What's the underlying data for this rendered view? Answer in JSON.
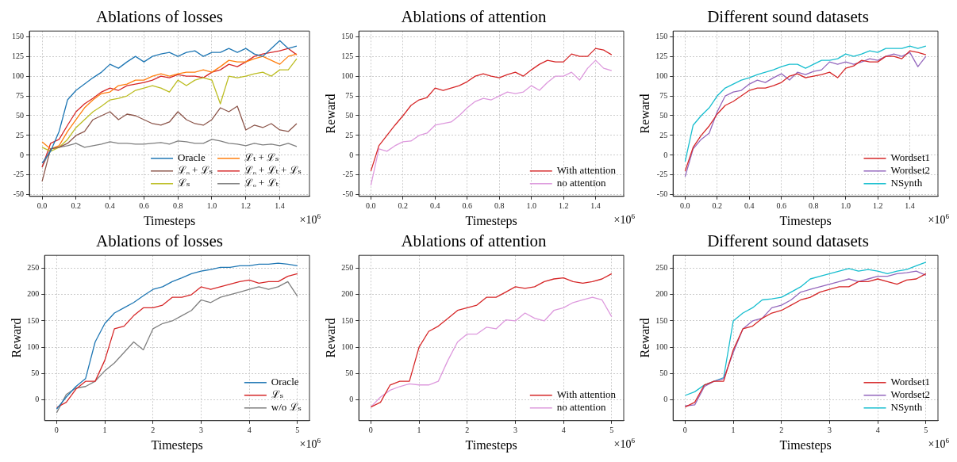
{
  "chart_data": [
    {
      "type": "line",
      "title": "Ablations of losses",
      "xlabel": "Timesteps",
      "annotations": [
        "×10$^{6}$"
      ],
      "grid": true,
      "legend": "bottom right",
      "x": [
        0,
        0.05,
        0.1,
        0.15,
        0.2,
        0.25,
        0.3,
        0.35,
        0.4,
        0.45,
        0.5,
        0.55,
        0.6,
        0.65,
        0.7,
        0.75,
        0.8,
        0.85,
        0.9,
        0.95,
        1.0,
        1.05,
        1.1,
        1.15,
        1.2,
        1.25,
        1.3,
        1.35,
        1.4,
        1.45,
        1.5
      ],
      "xlim": [
        -0.075,
        1.575
      ],
      "xticks": [
        {
          "value": 0,
          "label": "0.0"
        },
        {
          "value": 0.2,
          "label": "0.2"
        },
        {
          "value": 0.4,
          "label": "0.4"
        },
        {
          "value": 0.6,
          "label": "0.6"
        },
        {
          "value": 0.8,
          "label": "0.8"
        },
        {
          "value": 1,
          "label": "1.0"
        },
        {
          "value": 1.2,
          "label": "1.2"
        },
        {
          "value": 1.4,
          "label": "1.4"
        }
      ],
      "ylim": [
        -52,
        157
      ],
      "yticks": [
        -50,
        -25,
        0,
        25,
        50,
        75,
        100,
        125,
        150
      ],
      "series": [
        {
          "name": "Oracle",
          "color": "#1f77b4",
          "values": [
            -10,
            5,
            30,
            70,
            82,
            90,
            98,
            105,
            115,
            110,
            118,
            125,
            118,
            125,
            128,
            130,
            125,
            130,
            132,
            125,
            130,
            130,
            135,
            130,
            135,
            128,
            125,
            135,
            145,
            135,
            138
          ]
        },
        {
          "name": "ℒₒ + ℒₛ",
          "color": "#8c564b",
          "values": [
            -33,
            8,
            10,
            15,
            25,
            30,
            45,
            50,
            55,
            45,
            52,
            50,
            45,
            40,
            38,
            42,
            55,
            45,
            40,
            38,
            45,
            60,
            55,
            62,
            32,
            38,
            35,
            40,
            32,
            30,
            40
          ]
        },
        {
          "name": "ℒₛ",
          "color": "#bcbd22",
          "values": [
            10,
            5,
            10,
            20,
            35,
            45,
            55,
            62,
            70,
            72,
            75,
            82,
            85,
            88,
            85,
            80,
            95,
            88,
            95,
            98,
            95,
            65,
            100,
            98,
            100,
            103,
            105,
            100,
            108,
            108,
            122
          ]
        },
        {
          "name": "ℒₜ + ℒₛ",
          "color": "#ff7f0e",
          "values": [
            17,
            8,
            12,
            30,
            45,
            60,
            70,
            78,
            80,
            88,
            90,
            95,
            95,
            100,
            103,
            100,
            103,
            105,
            105,
            108,
            105,
            112,
            120,
            118,
            118,
            122,
            125,
            120,
            115,
            125,
            128
          ]
        },
        {
          "name": "ℒₒ + ℒₜ + ℒₛ",
          "color": "#d62728",
          "values": [
            -15,
            15,
            20,
            38,
            55,
            65,
            72,
            80,
            85,
            82,
            88,
            90,
            92,
            95,
            100,
            98,
            102,
            100,
            100,
            98,
            105,
            108,
            115,
            112,
            118,
            125,
            128,
            130,
            132,
            135,
            127
          ]
        },
        {
          "name": "ℒₒ + ℒₜ",
          "color": "#7f7f7f",
          "values": [
            -15,
            8,
            10,
            12,
            15,
            10,
            12,
            14,
            17,
            15,
            15,
            14,
            14,
            15,
            16,
            14,
            18,
            17,
            15,
            15,
            20,
            18,
            15,
            14,
            12,
            15,
            13,
            14,
            12,
            15,
            11
          ]
        }
      ]
    },
    {
      "type": "line",
      "title": "Ablations of attention",
      "xlabel": "Timesteps",
      "ylabel": "Reward",
      "annotations": [
        "×10$^{6}$"
      ],
      "grid": true,
      "legend": "bottom right",
      "x": [
        0,
        0.05,
        0.1,
        0.15,
        0.2,
        0.25,
        0.3,
        0.35,
        0.4,
        0.45,
        0.5,
        0.55,
        0.6,
        0.65,
        0.7,
        0.75,
        0.8,
        0.85,
        0.9,
        0.95,
        1.0,
        1.05,
        1.1,
        1.15,
        1.2,
        1.25,
        1.3,
        1.35,
        1.4,
        1.45,
        1.5
      ],
      "xlim": [
        -0.075,
        1.575
      ],
      "xticks": [
        {
          "value": 0,
          "label": "0.0"
        },
        {
          "value": 0.2,
          "label": "0.2"
        },
        {
          "value": 0.4,
          "label": "0.4"
        },
        {
          "value": 0.6,
          "label": "0.6"
        },
        {
          "value": 0.8,
          "label": "0.8"
        },
        {
          "value": 1,
          "label": "1.0"
        },
        {
          "value": 1.2,
          "label": "1.2"
        },
        {
          "value": 1.4,
          "label": "1.4"
        }
      ],
      "ylim": [
        -52,
        157
      ],
      "yticks": [
        -50,
        -25,
        0,
        25,
        50,
        75,
        100,
        125,
        150
      ],
      "series": [
        {
          "name": "With attention",
          "color": "#d62728",
          "values": [
            -20,
            12,
            25,
            38,
            50,
            63,
            70,
            73,
            85,
            82,
            85,
            88,
            93,
            100,
            103,
            100,
            98,
            102,
            105,
            100,
            108,
            115,
            120,
            118,
            118,
            128,
            125,
            125,
            135,
            133,
            127
          ]
        },
        {
          "name": "no attention",
          "color": "#dd99dd",
          "values": [
            -38,
            8,
            5,
            12,
            17,
            18,
            25,
            28,
            38,
            40,
            42,
            50,
            60,
            68,
            72,
            70,
            75,
            80,
            78,
            80,
            88,
            82,
            92,
            100,
            100,
            105,
            95,
            110,
            120,
            110,
            107
          ]
        }
      ]
    },
    {
      "type": "line",
      "title": "Different sound datasets",
      "xlabel": "Timesteps",
      "ylabel": "Reward",
      "annotations": [
        "×10$^{6}$"
      ],
      "grid": true,
      "legend": "bottom right",
      "x": [
        0,
        0.05,
        0.1,
        0.15,
        0.2,
        0.25,
        0.3,
        0.35,
        0.4,
        0.45,
        0.5,
        0.55,
        0.6,
        0.65,
        0.7,
        0.75,
        0.8,
        0.85,
        0.9,
        0.95,
        1.0,
        1.05,
        1.1,
        1.15,
        1.2,
        1.25,
        1.3,
        1.35,
        1.4,
        1.45,
        1.5
      ],
      "xlim": [
        -0.075,
        1.575
      ],
      "xticks": [
        {
          "value": 0,
          "label": "0.0"
        },
        {
          "value": 0.2,
          "label": "0.2"
        },
        {
          "value": 0.4,
          "label": "0.4"
        },
        {
          "value": 0.6,
          "label": "0.6"
        },
        {
          "value": 0.8,
          "label": "0.8"
        },
        {
          "value": 1,
          "label": "1.0"
        },
        {
          "value": 1.2,
          "label": "1.2"
        },
        {
          "value": 1.4,
          "label": "1.4"
        }
      ],
      "ylim": [
        -52,
        157
      ],
      "yticks": [
        -50,
        -25,
        0,
        25,
        50,
        75,
        100,
        125,
        150
      ],
      "series": [
        {
          "name": "Wordset1",
          "color": "#d62728",
          "values": [
            -20,
            10,
            25,
            37,
            52,
            63,
            68,
            75,
            82,
            85,
            85,
            88,
            92,
            100,
            103,
            98,
            100,
            102,
            105,
            98,
            110,
            113,
            120,
            118,
            118,
            125,
            125,
            122,
            132,
            130,
            127
          ]
        },
        {
          "name": "Wordset2",
          "color": "#9467bd",
          "values": [
            -27,
            8,
            20,
            28,
            55,
            75,
            80,
            82,
            90,
            95,
            92,
            98,
            103,
            95,
            105,
            102,
            106,
            108,
            118,
            115,
            118,
            115,
            118,
            122,
            120,
            125,
            128,
            125,
            130,
            112,
            125
          ]
        },
        {
          "name": "NSynth",
          "color": "#17becf",
          "values": [
            -8,
            38,
            50,
            60,
            75,
            85,
            90,
            95,
            98,
            102,
            105,
            108,
            112,
            115,
            115,
            110,
            115,
            120,
            120,
            122,
            128,
            125,
            128,
            132,
            130,
            135,
            135,
            135,
            138,
            135,
            138
          ]
        }
      ]
    },
    {
      "type": "line",
      "title": "Ablations of losses",
      "xlabel": "Timesteps",
      "ylabel": "Reward",
      "annotations": [
        "×10$^{6}$"
      ],
      "grid": true,
      "legend": "bottom right",
      "x": [
        0,
        0.2,
        0.4,
        0.6,
        0.8,
        1.0,
        1.2,
        1.4,
        1.6,
        1.8,
        2.0,
        2.2,
        2.4,
        2.6,
        2.8,
        3.0,
        3.2,
        3.4,
        3.6,
        3.8,
        4.0,
        4.2,
        4.4,
        4.6,
        4.8,
        5.0
      ],
      "xlim": [
        -0.25,
        5.25
      ],
      "xticks": [
        0,
        1,
        2,
        3,
        4,
        5
      ],
      "ylim": [
        -40,
        275
      ],
      "yticks": [
        0,
        50,
        100,
        150,
        200,
        250
      ],
      "series": [
        {
          "name": "Oracle",
          "color": "#1f77b4",
          "values": [
            -18,
            5,
            25,
            40,
            110,
            145,
            165,
            175,
            185,
            198,
            210,
            215,
            225,
            232,
            240,
            245,
            248,
            252,
            252,
            255,
            255,
            258,
            258,
            260,
            258,
            255
          ]
        },
        {
          "name": "ℒₛ",
          "color": "#d62728",
          "values": [
            -15,
            -5,
            20,
            35,
            35,
            75,
            135,
            140,
            160,
            175,
            175,
            180,
            195,
            195,
            200,
            215,
            210,
            215,
            220,
            225,
            228,
            222,
            225,
            225,
            235,
            240
          ]
        },
        {
          "name": "w/o ℒₛ",
          "color": "#7f7f7f",
          "values": [
            -25,
            10,
            22,
            25,
            35,
            55,
            70,
            90,
            110,
            95,
            135,
            145,
            150,
            160,
            170,
            190,
            185,
            195,
            200,
            205,
            210,
            215,
            210,
            215,
            225,
            197
          ]
        }
      ]
    },
    {
      "type": "line",
      "title": "Ablations of attention",
      "xlabel": "Timesteps",
      "ylabel": "Reward",
      "annotations": [
        "×10$^{6}$"
      ],
      "grid": true,
      "legend": "bottom right",
      "x": [
        0,
        0.2,
        0.4,
        0.6,
        0.8,
        1.0,
        1.2,
        1.4,
        1.6,
        1.8,
        2.0,
        2.2,
        2.4,
        2.6,
        2.8,
        3.0,
        3.2,
        3.4,
        3.6,
        3.8,
        4.0,
        4.2,
        4.4,
        4.6,
        4.8,
        5.0
      ],
      "xlim": [
        -0.25,
        5.25
      ],
      "xticks": [
        0,
        1,
        2,
        3,
        4,
        5
      ],
      "ylim": [
        -40,
        275
      ],
      "yticks": [
        0,
        50,
        100,
        150,
        200,
        250
      ],
      "series": [
        {
          "name": "With attention",
          "color": "#d62728",
          "values": [
            -14,
            -5,
            28,
            35,
            35,
            100,
            130,
            140,
            155,
            170,
            175,
            180,
            195,
            195,
            205,
            215,
            212,
            215,
            225,
            230,
            232,
            225,
            222,
            225,
            230,
            240
          ]
        },
        {
          "name": "no attention",
          "color": "#dd99dd",
          "values": [
            -14,
            5,
            18,
            25,
            30,
            28,
            28,
            35,
            75,
            110,
            125,
            125,
            138,
            135,
            152,
            150,
            165,
            155,
            150,
            170,
            175,
            185,
            190,
            195,
            190,
            158
          ]
        }
      ]
    },
    {
      "type": "line",
      "title": "Different sound datasets",
      "xlabel": "Timesteps",
      "ylabel": "Reward",
      "annotations": [
        "×10$^{6}$"
      ],
      "grid": true,
      "legend": "bottom right",
      "x": [
        0,
        0.2,
        0.4,
        0.6,
        0.8,
        1.0,
        1.2,
        1.4,
        1.6,
        1.8,
        2.0,
        2.2,
        2.4,
        2.6,
        2.8,
        3.0,
        3.2,
        3.4,
        3.6,
        3.8,
        4.0,
        4.2,
        4.4,
        4.6,
        4.8,
        5.0
      ],
      "xlim": [
        -0.25,
        5.25
      ],
      "xticks": [
        0,
        1,
        2,
        3,
        4,
        5
      ],
      "ylim": [
        -40,
        275
      ],
      "yticks": [
        0,
        50,
        100,
        150,
        200,
        250
      ],
      "series": [
        {
          "name": "Wordset1",
          "color": "#d62728",
          "values": [
            -14,
            -5,
            28,
            35,
            35,
            95,
            135,
            140,
            155,
            165,
            170,
            180,
            190,
            195,
            205,
            210,
            215,
            215,
            225,
            225,
            230,
            225,
            220,
            228,
            230,
            240
          ]
        },
        {
          "name": "Wordset2",
          "color": "#9467bd",
          "values": [
            -12,
            -10,
            25,
            35,
            40,
            90,
            135,
            150,
            155,
            175,
            180,
            190,
            205,
            210,
            215,
            220,
            225,
            230,
            225,
            230,
            235,
            235,
            240,
            242,
            245,
            237
          ]
        },
        {
          "name": "NSynth",
          "color": "#17becf",
          "values": [
            8,
            15,
            28,
            35,
            42,
            150,
            165,
            175,
            190,
            192,
            195,
            205,
            215,
            230,
            235,
            240,
            245,
            250,
            245,
            248,
            245,
            240,
            245,
            248,
            255,
            262
          ]
        }
      ]
    }
  ]
}
